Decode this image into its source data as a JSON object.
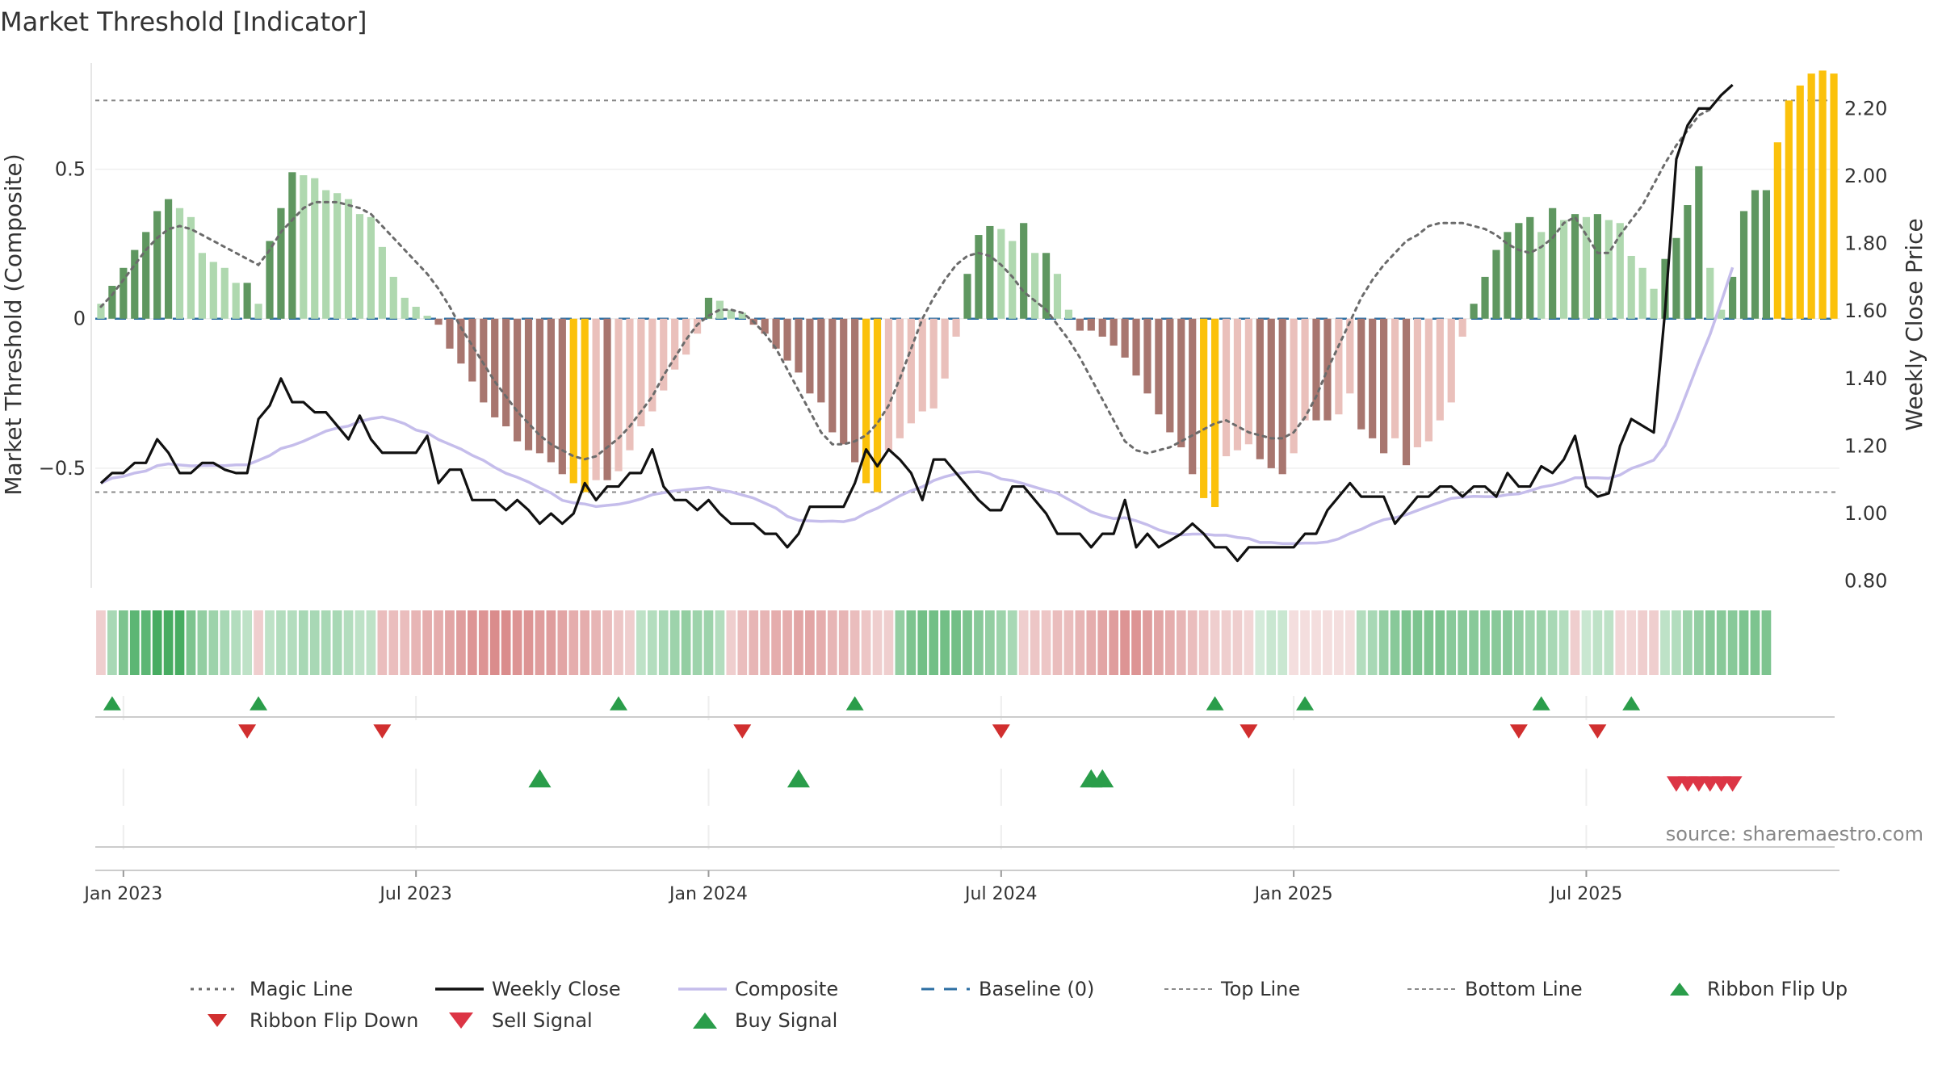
{
  "title": "Market Threshold [Indicator]",
  "source": "source: sharemaestro.com",
  "chart_data": {
    "type": "bar",
    "title": "Market Threshold [Indicator]",
    "ylabel_left": "Market Threshold (Composite)",
    "ylabel_right": "Weekly Close Price",
    "ylim_left": [
      -0.9,
      0.85
    ],
    "ylim_right": [
      0.78,
      2.33
    ],
    "left_ticks": [
      {
        "value": 0.5,
        "label": "0.5"
      },
      {
        "value": 0,
        "label": "0"
      },
      {
        "value": -0.5,
        "label": "−0.5"
      }
    ],
    "right_ticks": [
      {
        "value": 2.2,
        "label": "2.20"
      },
      {
        "value": 2.0,
        "label": "2.00"
      },
      {
        "value": 1.8,
        "label": "1.80"
      },
      {
        "value": 1.6,
        "label": "1.60"
      },
      {
        "value": 1.4,
        "label": "1.40"
      },
      {
        "value": 1.2,
        "label": "1.20"
      },
      {
        "value": 1.0,
        "label": "1.00"
      },
      {
        "value": 0.8,
        "label": "0.80"
      }
    ],
    "x_ticks": [
      {
        "week": 2,
        "label": "Jan 2023"
      },
      {
        "week": 28,
        "label": "Jul 2023"
      },
      {
        "week": 54,
        "label": "Jan 2024"
      },
      {
        "week": 80,
        "label": "Jul 2024"
      },
      {
        "week": 106,
        "label": "Jan 2025"
      },
      {
        "week": 132,
        "label": "Jul 2025"
      }
    ],
    "top_line": 0.73,
    "bottom_line": -0.58,
    "baseline": 0,
    "composite": [
      0.05,
      0.11,
      0.17,
      0.23,
      0.29,
      0.36,
      0.4,
      0.37,
      0.34,
      0.22,
      0.19,
      0.17,
      0.12,
      0.12,
      0.05,
      0.26,
      0.37,
      0.49,
      0.48,
      0.47,
      0.43,
      0.42,
      0.4,
      0.35,
      0.34,
      0.24,
      0.14,
      0.07,
      0.04,
      0.01,
      -0.02,
      -0.1,
      -0.15,
      -0.21,
      -0.28,
      -0.33,
      -0.36,
      -0.41,
      -0.44,
      -0.45,
      -0.48,
      -0.52,
      -0.55,
      -0.58,
      -0.54,
      -0.54,
      -0.51,
      -0.44,
      -0.36,
      -0.31,
      -0.24,
      -0.17,
      -0.12,
      -0.05,
      0.07,
      0.06,
      0.03,
      0.02,
      -0.02,
      -0.05,
      -0.1,
      -0.14,
      -0.18,
      -0.25,
      -0.28,
      -0.38,
      -0.42,
      -0.48,
      -0.55,
      -0.58,
      -0.44,
      -0.4,
      -0.35,
      -0.31,
      -0.3,
      -0.2,
      -0.06,
      0.15,
      0.28,
      0.31,
      0.3,
      0.26,
      0.32,
      0.22,
      0.22,
      0.15,
      0.03,
      -0.04,
      -0.04,
      -0.06,
      -0.09,
      -0.13,
      -0.19,
      -0.25,
      -0.32,
      -0.38,
      -0.43,
      -0.52,
      -0.6,
      -0.63,
      -0.46,
      -0.44,
      -0.42,
      -0.47,
      -0.5,
      -0.52,
      -0.45,
      -0.34,
      -0.34,
      -0.34,
      -0.32,
      -0.25,
      -0.37,
      -0.4,
      -0.45,
      -0.4,
      -0.49,
      -0.43,
      -0.41,
      -0.34,
      -0.28,
      -0.06,
      0.05,
      0.14,
      0.23,
      0.29,
      0.32,
      0.34,
      0.29,
      0.37,
      0.33,
      0.35,
      0.34,
      0.35,
      0.33,
      0.32,
      0.21,
      0.17,
      0.1,
      0.2,
      0.27,
      0.38,
      0.51,
      0.17,
      0.03,
      0.14,
      0.36,
      0.43,
      0.43,
      0.59,
      0.73,
      0.78,
      0.82,
      0.83,
      0.82
    ],
    "weekly_close": [
      1.09,
      1.12,
      1.12,
      1.15,
      1.15,
      1.22,
      1.18,
      1.12,
      1.12,
      1.15,
      1.15,
      1.13,
      1.12,
      1.12,
      1.28,
      1.32,
      1.4,
      1.33,
      1.33,
      1.3,
      1.3,
      1.26,
      1.22,
      1.29,
      1.22,
      1.18,
      1.18,
      1.18,
      1.18,
      1.23,
      1.09,
      1.13,
      1.13,
      1.04,
      1.04,
      1.04,
      1.01,
      1.04,
      1.01,
      0.97,
      1.0,
      0.97,
      1.0,
      1.09,
      1.04,
      1.08,
      1.08,
      1.12,
      1.12,
      1.19,
      1.08,
      1.04,
      1.04,
      1.01,
      1.04,
      1.0,
      0.97,
      0.97,
      0.97,
      0.94,
      0.94,
      0.9,
      0.94,
      1.02,
      1.02,
      1.02,
      1.02,
      1.09,
      1.19,
      1.14,
      1.19,
      1.16,
      1.12,
      1.04,
      1.16,
      1.16,
      1.12,
      1.08,
      1.04,
      1.01,
      1.01,
      1.08,
      1.08,
      1.04,
      1.0,
      0.94,
      0.94,
      0.94,
      0.9,
      0.94,
      0.94,
      1.04,
      0.9,
      0.94,
      0.9,
      0.92,
      0.94,
      0.97,
      0.94,
      0.9,
      0.9,
      0.86,
      0.9,
      0.9,
      0.9,
      0.9,
      0.9,
      0.94,
      0.94,
      1.01,
      1.05,
      1.09,
      1.05,
      1.05,
      1.05,
      0.97,
      1.01,
      1.05,
      1.05,
      1.08,
      1.08,
      1.05,
      1.08,
      1.08,
      1.05,
      1.12,
      1.08,
      1.08,
      1.14,
      1.12,
      1.16,
      1.23,
      1.08,
      1.05,
      1.06,
      1.2,
      1.28,
      1.26,
      1.24,
      1.6,
      2.05,
      2.15,
      2.2,
      2.2,
      2.24,
      2.27
    ],
    "magic_line": [
      0.04,
      0.08,
      0.13,
      0.18,
      0.23,
      0.27,
      0.3,
      0.31,
      0.3,
      0.28,
      0.26,
      0.24,
      0.22,
      0.2,
      0.18,
      0.23,
      0.29,
      0.33,
      0.37,
      0.39,
      0.39,
      0.39,
      0.38,
      0.37,
      0.35,
      0.31,
      0.27,
      0.23,
      0.19,
      0.15,
      0.1,
      0.04,
      -0.03,
      -0.09,
      -0.15,
      -0.21,
      -0.26,
      -0.31,
      -0.35,
      -0.39,
      -0.42,
      -0.44,
      -0.46,
      -0.47,
      -0.46,
      -0.43,
      -0.4,
      -0.36,
      -0.31,
      -0.26,
      -0.19,
      -0.13,
      -0.07,
      -0.02,
      0.01,
      0.03,
      0.03,
      0.02,
      -0.01,
      -0.05,
      -0.1,
      -0.17,
      -0.24,
      -0.31,
      -0.38,
      -0.42,
      -0.42,
      -0.41,
      -0.39,
      -0.35,
      -0.29,
      -0.2,
      -0.1,
      0.0,
      0.07,
      0.13,
      0.18,
      0.21,
      0.22,
      0.21,
      0.18,
      0.14,
      0.09,
      0.06,
      0.03,
      -0.02,
      -0.07,
      -0.13,
      -0.2,
      -0.27,
      -0.34,
      -0.41,
      -0.44,
      -0.45,
      -0.44,
      -0.43,
      -0.41,
      -0.39,
      -0.37,
      -0.35,
      -0.34,
      -0.36,
      -0.38,
      -0.39,
      -0.4,
      -0.4,
      -0.38,
      -0.33,
      -0.26,
      -0.17,
      -0.09,
      -0.01,
      0.07,
      0.13,
      0.18,
      0.22,
      0.26,
      0.28,
      0.31,
      0.32,
      0.32,
      0.32,
      0.31,
      0.3,
      0.28,
      0.25,
      0.23,
      0.22,
      0.24,
      0.27,
      0.32,
      0.34,
      0.28,
      0.22,
      0.22,
      0.28,
      0.33,
      0.38,
      0.45,
      0.52,
      0.58,
      0.63,
      0.68,
      0.7
    ],
    "ribbon_levels": [
      -0.3,
      0.4,
      0.6,
      0.75,
      0.75,
      0.85,
      0.85,
      0.85,
      0.6,
      0.5,
      0.45,
      0.4,
      0.35,
      0.3,
      -0.3,
      0.3,
      0.35,
      0.35,
      0.4,
      0.4,
      0.4,
      0.4,
      0.35,
      0.3,
      0.3,
      -0.4,
      -0.4,
      -0.4,
      -0.45,
      -0.5,
      -0.5,
      -0.55,
      -0.6,
      -0.65,
      -0.65,
      -0.7,
      -0.7,
      -0.65,
      -0.65,
      -0.6,
      -0.6,
      -0.55,
      -0.5,
      -0.5,
      -0.45,
      -0.4,
      -0.35,
      -0.3,
      0.3,
      0.35,
      0.4,
      0.45,
      0.5,
      0.45,
      0.45,
      0.35,
      -0.3,
      -0.4,
      -0.45,
      -0.45,
      -0.5,
      -0.5,
      -0.55,
      -0.55,
      -0.5,
      -0.45,
      -0.45,
      -0.4,
      -0.35,
      -0.3,
      -0.3,
      0.5,
      0.6,
      0.65,
      0.65,
      0.65,
      0.65,
      0.6,
      0.55,
      0.5,
      0.45,
      0.4,
      -0.3,
      -0.35,
      -0.35,
      -0.4,
      -0.4,
      -0.45,
      -0.5,
      -0.55,
      -0.6,
      -0.65,
      -0.65,
      -0.6,
      -0.55,
      -0.5,
      -0.45,
      -0.4,
      -0.35,
      -0.3,
      -0.3,
      -0.3,
      -0.25,
      0.2,
      0.25,
      0.25,
      -0.2,
      -0.2,
      -0.2,
      -0.2,
      -0.2,
      -0.2,
      0.35,
      0.4,
      0.5,
      0.55,
      0.6,
      0.6,
      0.6,
      0.6,
      0.55,
      0.55,
      0.55,
      0.55,
      0.55,
      0.55,
      0.5,
      0.45,
      0.45,
      0.4,
      0.35,
      -0.3,
      0.25,
      0.3,
      0.3,
      -0.25,
      -0.25,
      -0.3,
      -0.3,
      0.3,
      0.35,
      0.45,
      0.5,
      0.55,
      0.55,
      0.55,
      0.6,
      0.6,
      0.6
    ],
    "ribbon_flip_up_weeks": [
      1,
      14,
      46,
      67,
      99,
      107,
      128,
      136
    ],
    "ribbon_flip_down_weeks": [
      13,
      25,
      57,
      80,
      102,
      126,
      133
    ],
    "buy_signal_weeks": [
      39,
      62,
      88,
      89
    ],
    "sell_signal_weeks": [
      140,
      141,
      142,
      143,
      144,
      145
    ],
    "legend": [
      {
        "key": "magic",
        "label": "Magic Line"
      },
      {
        "key": "close",
        "label": "Weekly Close"
      },
      {
        "key": "composite",
        "label": "Composite"
      },
      {
        "key": "baseline",
        "label": "Baseline (0)"
      },
      {
        "key": "top",
        "label": "Top Line"
      },
      {
        "key": "bottom",
        "label": "Bottom Line"
      },
      {
        "key": "flipup",
        "label": "Ribbon Flip Up"
      },
      {
        "key": "flipdown",
        "label": "Ribbon Flip Down"
      },
      {
        "key": "sell",
        "label": "Sell Signal"
      },
      {
        "key": "buy",
        "label": "Buy Signal"
      }
    ],
    "colors": {
      "pos_strong": "#5f9760",
      "pos_weak": "#afd8af",
      "neg_strong": "#a8766f",
      "neg_weak": "#eac0bb",
      "extreme": "#fbc10b",
      "close_line": "#111111",
      "composite_line": "#c5bdeb",
      "magic_line": "#6b6b6b",
      "baseline": "#2d6fa3",
      "threshold_line": "#8a8a8a",
      "ribbon_green": "#3aa656",
      "ribbon_red": "#cf6a6a",
      "up_marker": "#2a9d4a",
      "down_marker": "#d12f2f",
      "sell_marker": "#dc3545",
      "buy_marker": "#2a9d4a"
    }
  }
}
